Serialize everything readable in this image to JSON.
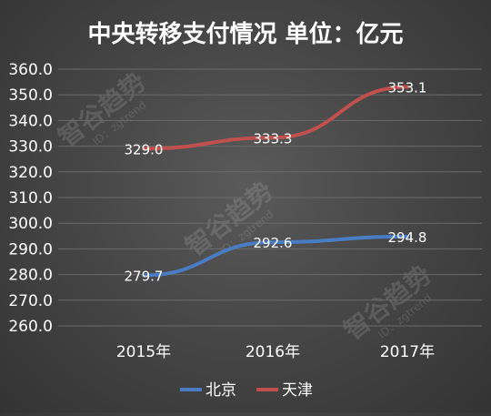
{
  "chart_data": {
    "type": "line",
    "title": "中央转移支付情况 单位：亿元",
    "categories": [
      "2015年",
      "2016年",
      "2017年"
    ],
    "series": [
      {
        "name": "北京",
        "color": "#4a7cc4",
        "values": [
          279.7,
          292.6,
          294.8
        ],
        "labels": [
          "279.7",
          "292.6",
          "294.8"
        ]
      },
      {
        "name": "天津",
        "color": "#c0504d",
        "values": [
          329.0,
          333.3,
          353.1
        ],
        "labels": [
          "329.0",
          "333.3",
          "353.1"
        ]
      }
    ],
    "ylim": [
      260,
      360
    ],
    "yticks": [
      "360.0",
      "350.0",
      "340.0",
      "330.0",
      "320.0",
      "310.0",
      "300.0",
      "290.0",
      "280.0",
      "270.0",
      "260.0"
    ],
    "grid": true,
    "legend": "bottom",
    "background": "#4a4a4a"
  },
  "watermark": {
    "name": "智谷趋势",
    "id": "ID：zgtrend"
  }
}
